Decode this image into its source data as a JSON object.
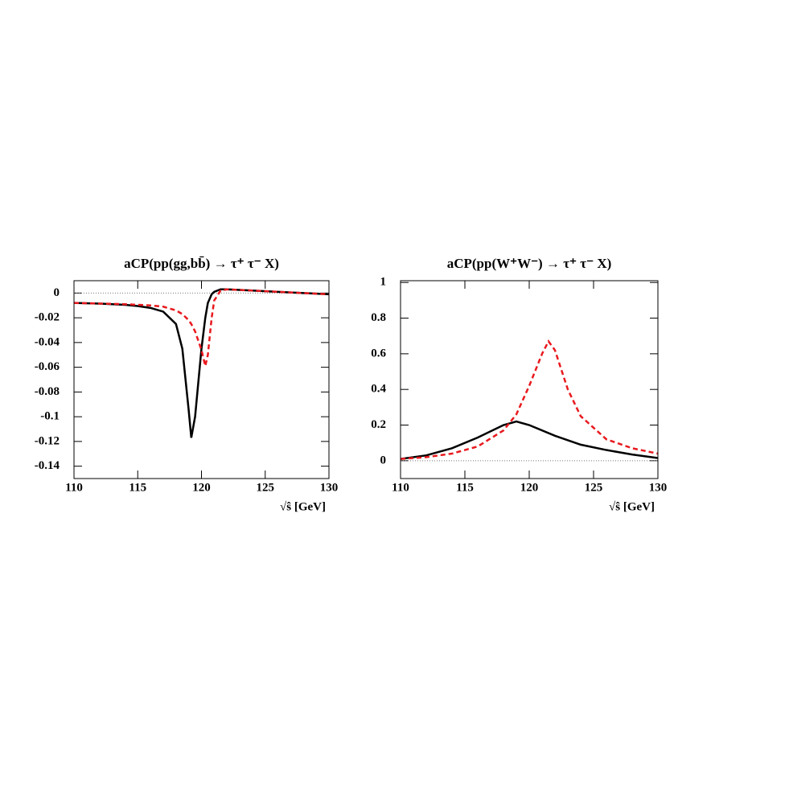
{
  "chart_data": [
    {
      "type": "line",
      "title": "aCP(pp(gg,bb̄) → τ⁺ τ⁻ X)",
      "x_label": "√ŝ [GeV]",
      "xlim": [
        110,
        130
      ],
      "xticks": [
        110,
        115,
        120,
        125,
        130
      ],
      "ylim": [
        -0.15,
        0.01
      ],
      "yticks": [
        0,
        -0.02,
        -0.04,
        -0.06,
        -0.08,
        -0.1,
        -0.12,
        -0.14
      ],
      "series": [
        {
          "color": "#000000",
          "dash": false,
          "x": [
            110,
            112,
            114,
            115,
            116,
            117,
            118,
            118.5,
            119,
            119.2,
            119.5,
            120,
            120.3,
            120.5,
            120.8,
            121,
            121.5,
            122,
            124,
            126,
            128,
            130
          ],
          "values": [
            -0.008,
            -0.0085,
            -0.0095,
            -0.0105,
            -0.012,
            -0.015,
            -0.025,
            -0.045,
            -0.095,
            -0.117,
            -0.1,
            -0.045,
            -0.02,
            -0.008,
            -0.001,
            0.001,
            0.003,
            0.003,
            0.002,
            0.001,
            0,
            -0.001
          ]
        },
        {
          "color": "#e8191e",
          "dash": true,
          "x": [
            110,
            112,
            114,
            115,
            116,
            117,
            118,
            118.5,
            119,
            119.2,
            119.5,
            120,
            120.3,
            120.5,
            120.8,
            121,
            121.5,
            122,
            124,
            126,
            128,
            130
          ],
          "values": [
            -0.008,
            -0.0085,
            -0.009,
            -0.0095,
            -0.01,
            -0.011,
            -0.014,
            -0.017,
            -0.022,
            -0.025,
            -0.031,
            -0.046,
            -0.059,
            -0.05,
            -0.02,
            -0.006,
            0.002,
            0.003,
            0.002,
            0.001,
            0,
            -0.001
          ]
        }
      ]
    },
    {
      "type": "line",
      "title": "aCP(pp(W⁺W⁻) → τ⁺ τ⁻ X)",
      "x_label": "√ŝ [GeV]",
      "xlim": [
        110,
        130
      ],
      "xticks": [
        110,
        115,
        120,
        125,
        130
      ],
      "ylim": [
        -0.1,
        1.01
      ],
      "yticks": [
        0,
        0.2,
        0.4,
        0.6,
        0.8,
        1
      ],
      "series": [
        {
          "color": "#000000",
          "dash": false,
          "x": [
            110,
            112,
            114,
            116,
            118,
            119,
            120,
            122,
            124,
            126,
            128,
            130
          ],
          "values": [
            0.01,
            0.03,
            0.07,
            0.13,
            0.2,
            0.22,
            0.2,
            0.14,
            0.09,
            0.06,
            0.035,
            0.015
          ]
        },
        {
          "color": "#e8191e",
          "dash": true,
          "x": [
            110,
            112,
            114,
            116,
            118,
            119,
            120,
            121,
            121.5,
            122,
            123,
            124,
            126,
            128,
            130
          ],
          "values": [
            0.01,
            0.02,
            0.04,
            0.08,
            0.17,
            0.26,
            0.42,
            0.6,
            0.67,
            0.62,
            0.4,
            0.25,
            0.12,
            0.07,
            0.04
          ]
        }
      ]
    }
  ]
}
